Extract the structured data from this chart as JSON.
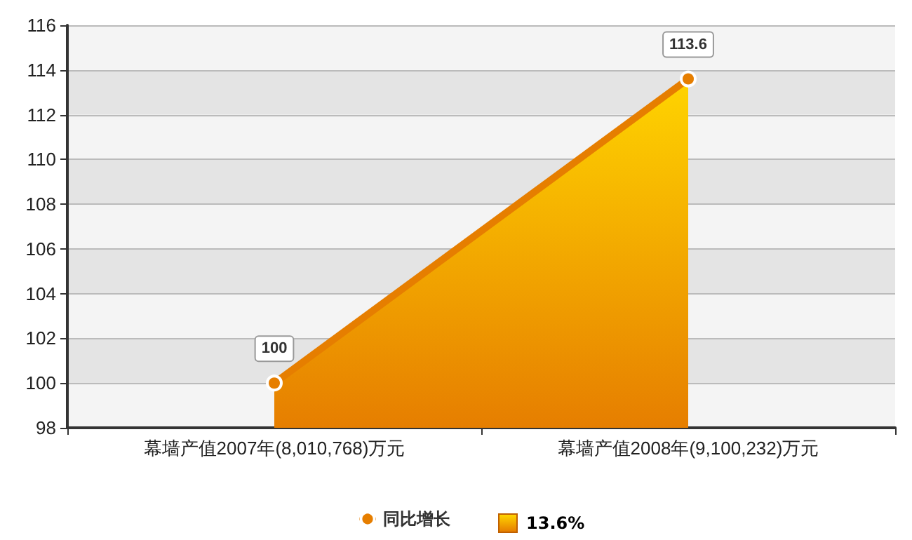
{
  "chart_data": {
    "type": "area",
    "categories": [
      "幕墙产值2007年(8,010,768)万元",
      "幕墙产值2008年(9,100,232)万元"
    ],
    "series": [
      {
        "name": "同比增长",
        "color": "#e67e00",
        "values": [
          100,
          113.6
        ]
      }
    ],
    "ylim": [
      98,
      116
    ],
    "yticks": [
      98,
      100,
      102,
      104,
      106,
      108,
      110,
      112,
      114,
      116
    ],
    "grid": "y",
    "legend": "bottom",
    "marker": "circle",
    "data_labels": true,
    "annotations": [
      "13.6%"
    ]
  }
}
